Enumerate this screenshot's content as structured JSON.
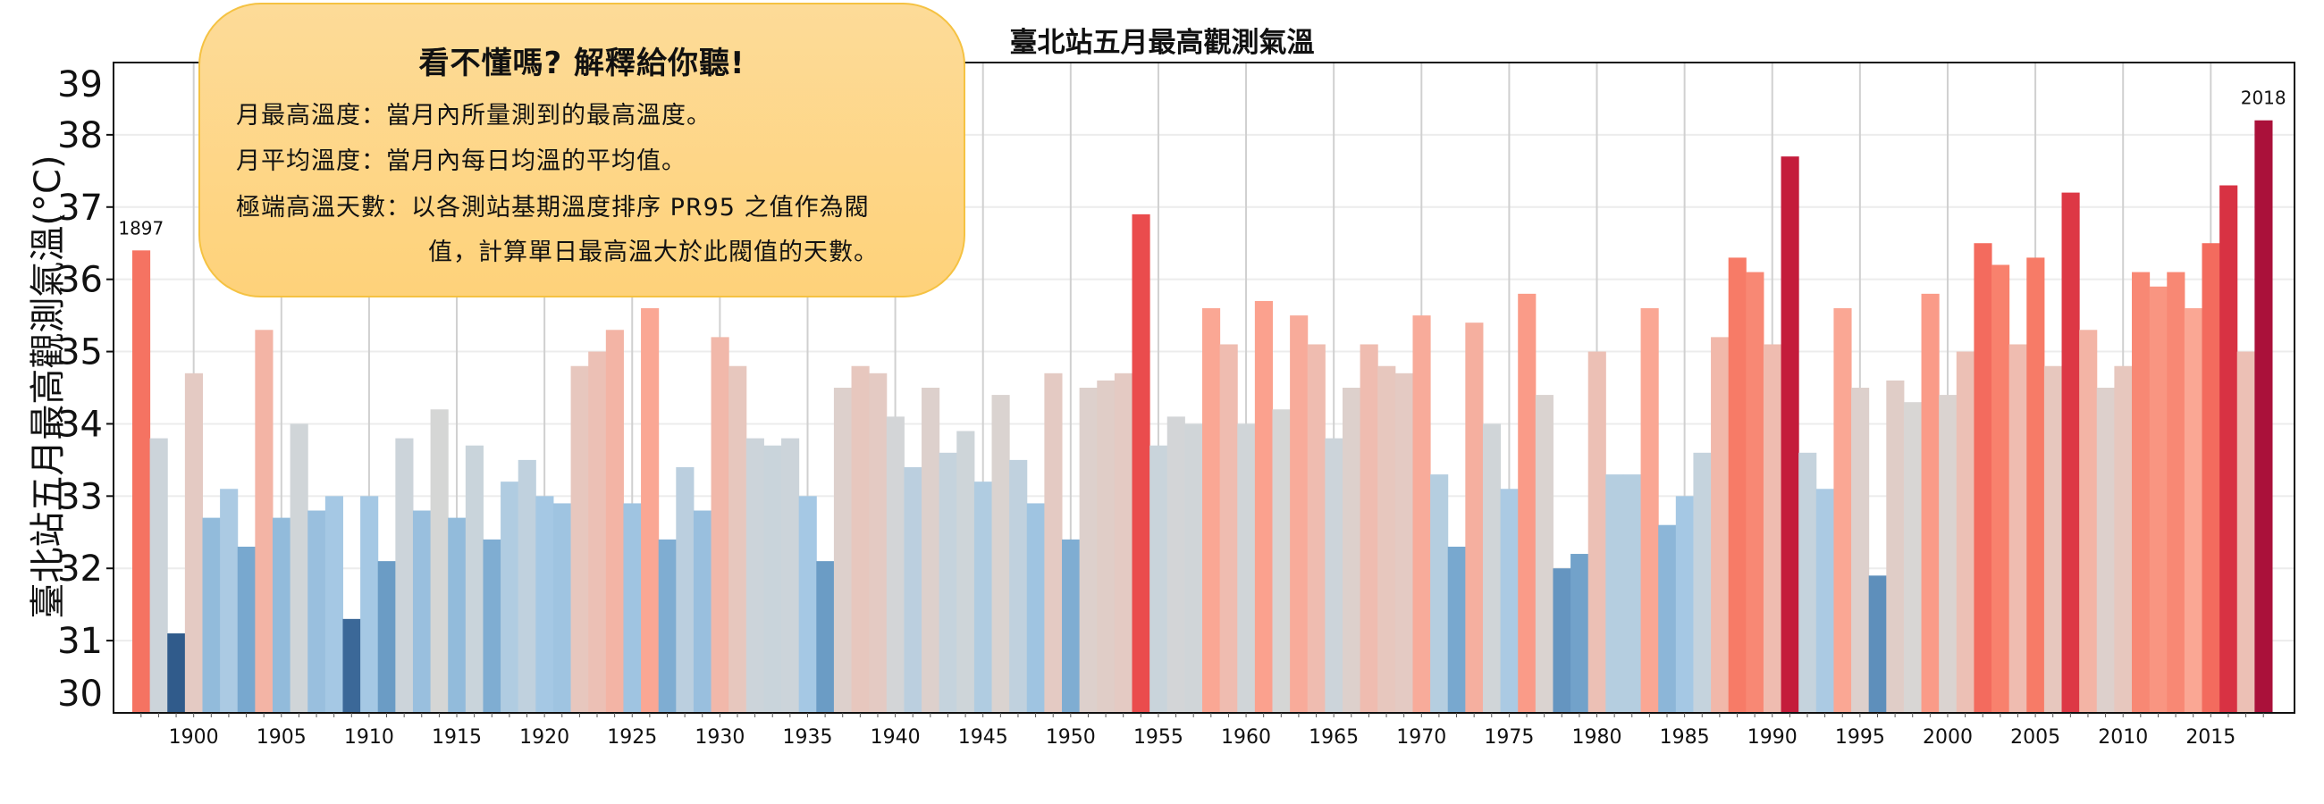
{
  "chart_data": {
    "type": "bar",
    "title": "臺北站五月最高觀測氣溫",
    "xlabel": "",
    "ylabel": "臺北站五月最高觀測氣溫(°C)",
    "ylim": [
      30,
      39
    ],
    "yticks": [
      "30",
      "31",
      "32",
      "33",
      "34",
      "35",
      "36",
      "37",
      "38",
      "39"
    ],
    "xticks": [
      "1900",
      "1905",
      "1910",
      "1915",
      "1920",
      "1925",
      "1930",
      "1935",
      "1940",
      "1945",
      "1950",
      "1955",
      "1960",
      "1965",
      "1970",
      "1975",
      "1980",
      "1985",
      "1990",
      "1995",
      "2000",
      "2005",
      "2010",
      "2015"
    ],
    "grid": true,
    "start_year": 1897,
    "annotations": [
      "1897",
      "2018"
    ],
    "x": [
      1897,
      1898,
      1899,
      1900,
      1901,
      1902,
      1903,
      1904,
      1905,
      1906,
      1907,
      1908,
      1909,
      1910,
      1911,
      1912,
      1913,
      1914,
      1915,
      1916,
      1917,
      1918,
      1919,
      1920,
      1921,
      1922,
      1923,
      1924,
      1925,
      1926,
      1927,
      1928,
      1929,
      1930,
      1931,
      1932,
      1933,
      1934,
      1935,
      1936,
      1937,
      1938,
      1939,
      1940,
      1941,
      1942,
      1943,
      1944,
      1945,
      1946,
      1947,
      1948,
      1949,
      1950,
      1951,
      1952,
      1953,
      1954,
      1955,
      1956,
      1957,
      1958,
      1959,
      1960,
      1961,
      1962,
      1963,
      1964,
      1965,
      1966,
      1967,
      1968,
      1969,
      1970,
      1971,
      1972,
      1973,
      1974,
      1975,
      1976,
      1977,
      1978,
      1979,
      1980,
      1981,
      1982,
      1983,
      1984,
      1985,
      1986,
      1987,
      1988,
      1989,
      1990,
      1991,
      1992,
      1993,
      1994,
      1995,
      1996,
      1997,
      1998,
      1999,
      2000,
      2001,
      2002,
      2003,
      2004,
      2005,
      2006,
      2007,
      2008,
      2009,
      2010,
      2011,
      2012,
      2013,
      2014,
      2015,
      2016,
      2017,
      2018
    ],
    "values": [
      36.4,
      33.8,
      31.1,
      34.7,
      32.7,
      33.1,
      32.3,
      35.3,
      32.7,
      34.0,
      32.8,
      33.0,
      31.3,
      33.0,
      32.1,
      33.8,
      32.8,
      34.2,
      32.7,
      33.7,
      32.4,
      33.2,
      33.5,
      33.0,
      32.9,
      34.8,
      35.0,
      35.3,
      32.9,
      35.6,
      32.4,
      33.4,
      32.8,
      35.2,
      34.8,
      33.8,
      33.7,
      33.8,
      33.0,
      32.1,
      34.5,
      34.8,
      34.7,
      34.1,
      33.4,
      34.5,
      33.6,
      33.9,
      33.2,
      34.4,
      33.5,
      32.9,
      34.7,
      32.4,
      34.5,
      34.6,
      34.7,
      36.9,
      33.7,
      34.1,
      34.0,
      35.6,
      35.1,
      34.0,
      35.7,
      34.2,
      35.5,
      35.1,
      33.8,
      34.5,
      35.1,
      34.8,
      34.7,
      35.5,
      33.3,
      32.3,
      35.4,
      34.0,
      33.1,
      35.8,
      34.4,
      32.0,
      32.2,
      35.0,
      33.3,
      33.3,
      35.6,
      32.6,
      33.0,
      33.6,
      35.2,
      36.3,
      36.1,
      35.1,
      37.7,
      33.6,
      33.1,
      35.6,
      34.5,
      31.9,
      34.6,
      34.3,
      35.8,
      34.4,
      35.0,
      36.5,
      36.2,
      35.1,
      36.3,
      34.8,
      37.2,
      35.3,
      34.5,
      34.8,
      36.1,
      35.9,
      36.1,
      35.6,
      36.5,
      37.3,
      35.0,
      38.2
    ],
    "colormap": [
      "#2b5585",
      "#4f80b0",
      "#7aaad0",
      "#a5c8e4",
      "#c8d4dc",
      "#d8d6d4",
      "#ecc1b6",
      "#fba592",
      "#f77a66",
      "#e8464a",
      "#c71d3b",
      "#a50f3a"
    ]
  },
  "callout": {
    "title": "看不懂嗎? 解釋給你聽!",
    "line1": "月最高溫度：當月內所量測到的最高溫度。",
    "line2": "月平均溫度：當月內每日均溫的平均值。",
    "line3": "極端高溫天數：以各測站基期溫度排序 PR95 之值作為閥",
    "line4": "值，計算單日最高溫大於此閥值的天數。"
  }
}
